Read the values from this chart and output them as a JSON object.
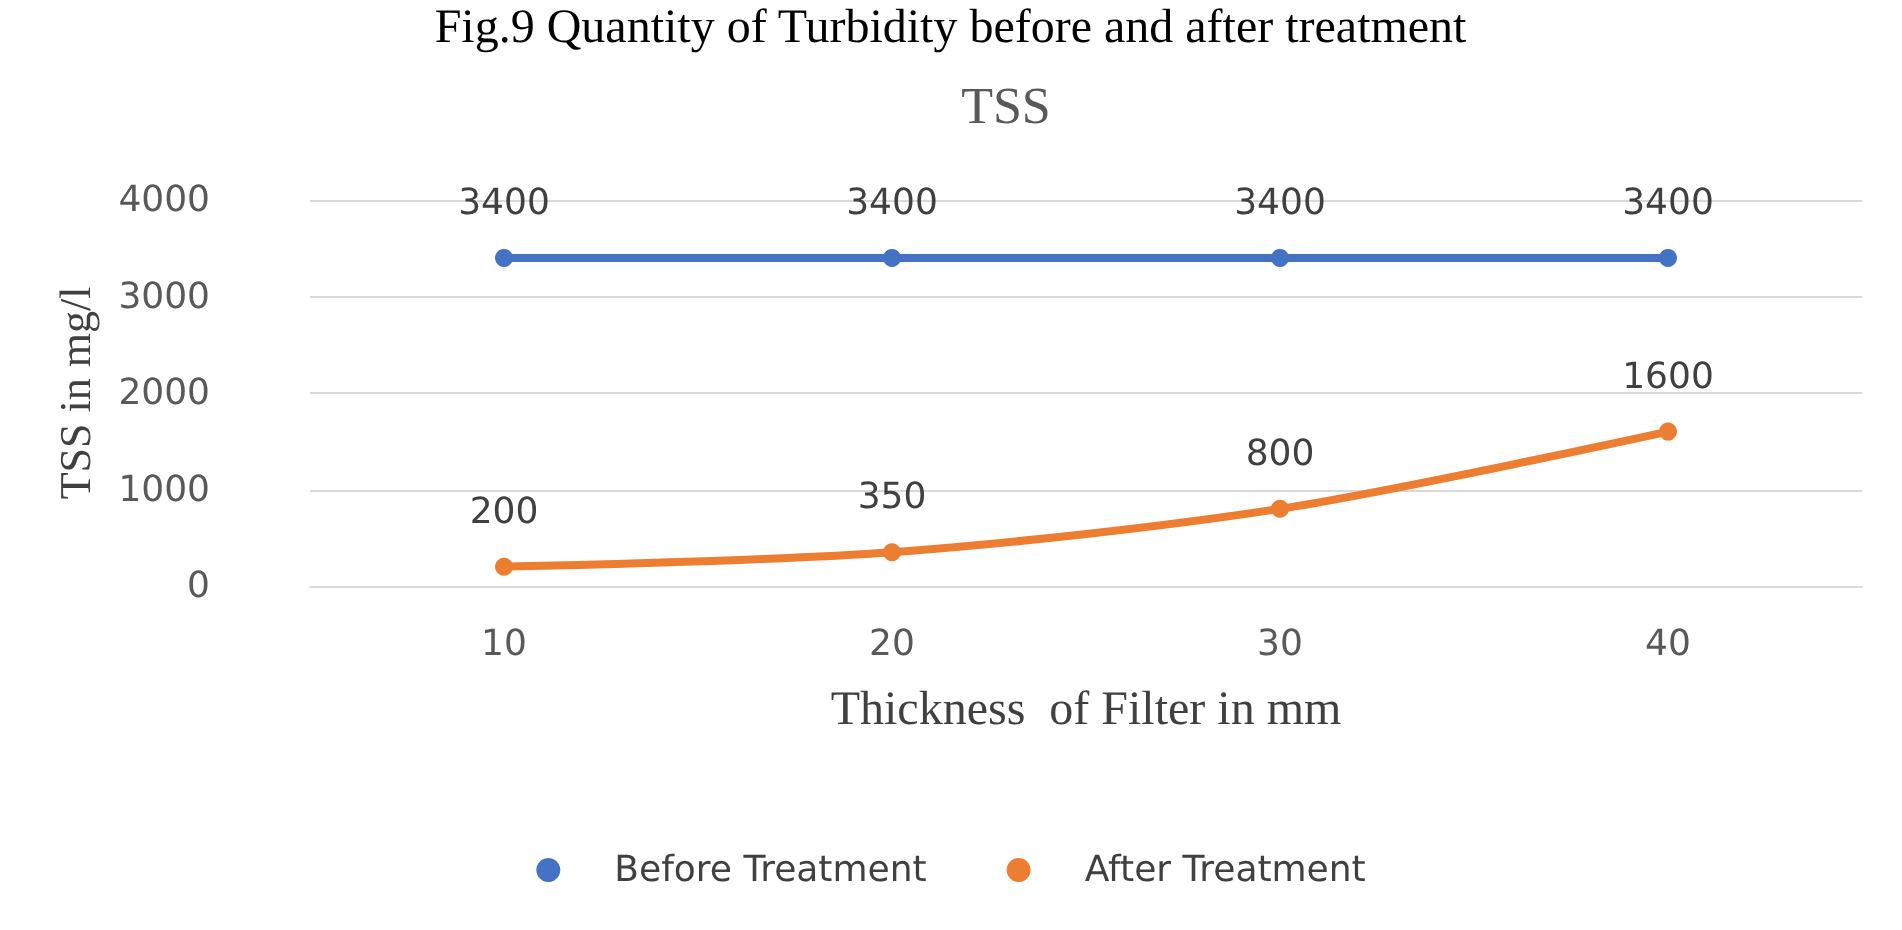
{
  "chart_data": {
    "type": "line",
    "title": "TSS",
    "annotations": [
      "Fig.9 Quantity of Turbidity before and after treatment"
    ],
    "xlabel": "Thickness  of Filter in mm",
    "ylabel": "TSS in mg/l",
    "categories": [
      "10",
      "20",
      "30",
      "40"
    ],
    "series": [
      {
        "name": "Before Treatment",
        "color": "#4472c4",
        "values": [
          3400,
          3400,
          3400,
          3400
        ]
      },
      {
        "name": "After Treatment",
        "color": "#ed7d31",
        "values": [
          200,
          350,
          800,
          1600
        ]
      }
    ],
    "ylim": [
      0,
      4000
    ],
    "yticks": [
      0,
      1000,
      2000,
      3000,
      4000
    ],
    "grid": "y",
    "legend": "bottom",
    "marker": "circle",
    "line_style": "solid",
    "data_labels": true
  }
}
